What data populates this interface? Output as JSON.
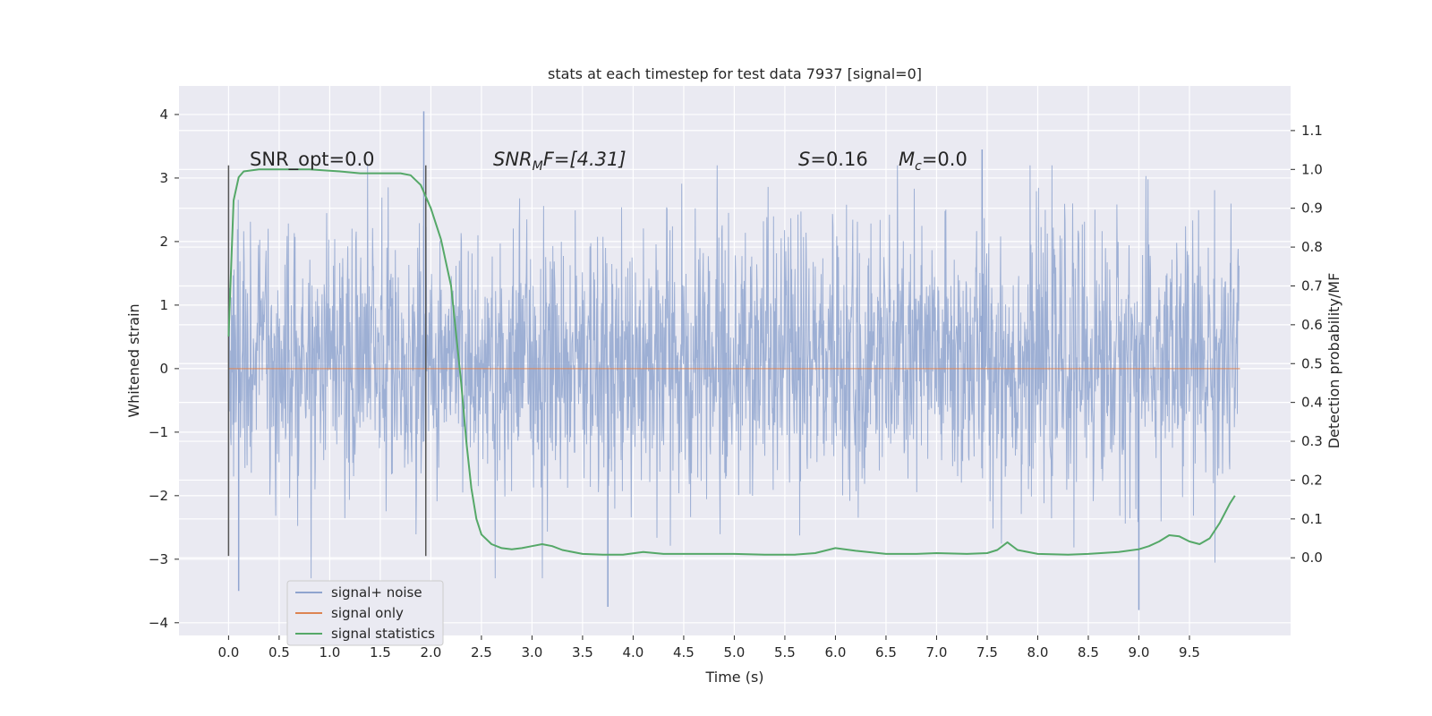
{
  "chart_data": {
    "type": "line",
    "title": "stats at each timestep for test data 7937 [signal=0]",
    "xlabel": "Time (s)",
    "ylabel": "Whitened strain",
    "y2label": "Detection probability/MF",
    "xlim": [
      -0.49,
      10.5
    ],
    "ylim": [
      -4.2,
      4.45
    ],
    "y2lim": [
      -0.2,
      1.215
    ],
    "xticks": [
      "0.0",
      "0.5",
      "1.0",
      "1.5",
      "2.0",
      "2.5",
      "3.0",
      "3.5",
      "4.0",
      "4.5",
      "5.0",
      "5.5",
      "6.0",
      "6.5",
      "7.0",
      "7.5",
      "8.0",
      "8.5",
      "9.0",
      "9.5"
    ],
    "yticks": [
      "4",
      "3",
      "2",
      "1",
      "0",
      "−1",
      "−2",
      "−3",
      "−4"
    ],
    "y2ticks": [
      "1.1",
      "1.0",
      "0.9",
      "0.8",
      "0.7",
      "0.6",
      "0.5",
      "0.4",
      "0.3",
      "0.2",
      "0.1",
      "0.0"
    ],
    "grid": true,
    "legend_position": "bottom-left",
    "colors": {
      "plot_bg": "#eaeaf2",
      "noise": "#8fa4cf",
      "signal": "#dd8452",
      "stats": "#55a868",
      "vline": "#555555"
    },
    "annotations": {
      "snr_opt": "SNR_opt=0.0",
      "snr_mf_main": "SNR",
      "snr_mf_sub": "M",
      "snr_mf_rest": "F=[4.31]",
      "s_main": "S",
      "s_rest": "=0.16",
      "mc_main": "M",
      "mc_sub": "c",
      "mc_rest": "=0.0"
    },
    "series": [
      {
        "name": "signal+ noise",
        "kind": "noise",
        "x_range": [
          0.0,
          9.99
        ],
        "core_band": [
          -1.1,
          1.3
        ],
        "notable_peaks": [
          [
            1.93,
            4.05
          ],
          [
            7.45,
            3.45
          ],
          [
            9.0,
            -3.8
          ],
          [
            3.75,
            -3.75
          ],
          [
            0.1,
            -3.5
          ]
        ]
      },
      {
        "name": "signal only",
        "kind": "flat",
        "x": [
          0.0,
          10.0
        ],
        "y": [
          0.0,
          0.0
        ]
      },
      {
        "name": "signal statistics",
        "kind": "line",
        "axis": "right",
        "x": [
          0.0,
          0.05,
          0.1,
          0.15,
          0.3,
          0.5,
          0.8,
          1.1,
          1.3,
          1.5,
          1.7,
          1.8,
          1.9,
          2.0,
          2.1,
          2.2,
          2.3,
          2.35,
          2.4,
          2.45,
          2.5,
          2.6,
          2.7,
          2.8,
          2.9,
          3.0,
          3.1,
          3.2,
          3.3,
          3.5,
          3.7,
          3.9,
          4.1,
          4.3,
          4.5,
          4.8,
          5.0,
          5.3,
          5.6,
          5.8,
          6.0,
          6.2,
          6.5,
          6.8,
          7.0,
          7.3,
          7.5,
          7.6,
          7.7,
          7.8,
          8.0,
          8.3,
          8.5,
          8.8,
          9.0,
          9.1,
          9.2,
          9.3,
          9.4,
          9.5,
          9.6,
          9.7,
          9.8,
          9.9,
          9.95
        ],
        "y": [
          0.57,
          0.92,
          0.98,
          0.995,
          1.0,
          1.0,
          1.0,
          0.995,
          0.99,
          0.99,
          0.99,
          0.985,
          0.96,
          0.9,
          0.82,
          0.7,
          0.45,
          0.3,
          0.18,
          0.1,
          0.06,
          0.035,
          0.025,
          0.022,
          0.025,
          0.03,
          0.035,
          0.03,
          0.02,
          0.01,
          0.008,
          0.008,
          0.015,
          0.01,
          0.01,
          0.01,
          0.01,
          0.008,
          0.008,
          0.012,
          0.025,
          0.018,
          0.01,
          0.01,
          0.012,
          0.01,
          0.012,
          0.02,
          0.04,
          0.02,
          0.01,
          0.008,
          0.01,
          0.015,
          0.022,
          0.03,
          0.042,
          0.058,
          0.055,
          0.042,
          0.035,
          0.05,
          0.09,
          0.14,
          0.16
        ]
      }
    ],
    "vlines": [
      {
        "x": 0.0,
        "y_range": [
          -2.95,
          3.2
        ]
      },
      {
        "x": 1.95,
        "y_range": [
          -2.95,
          3.2
        ]
      }
    ]
  }
}
